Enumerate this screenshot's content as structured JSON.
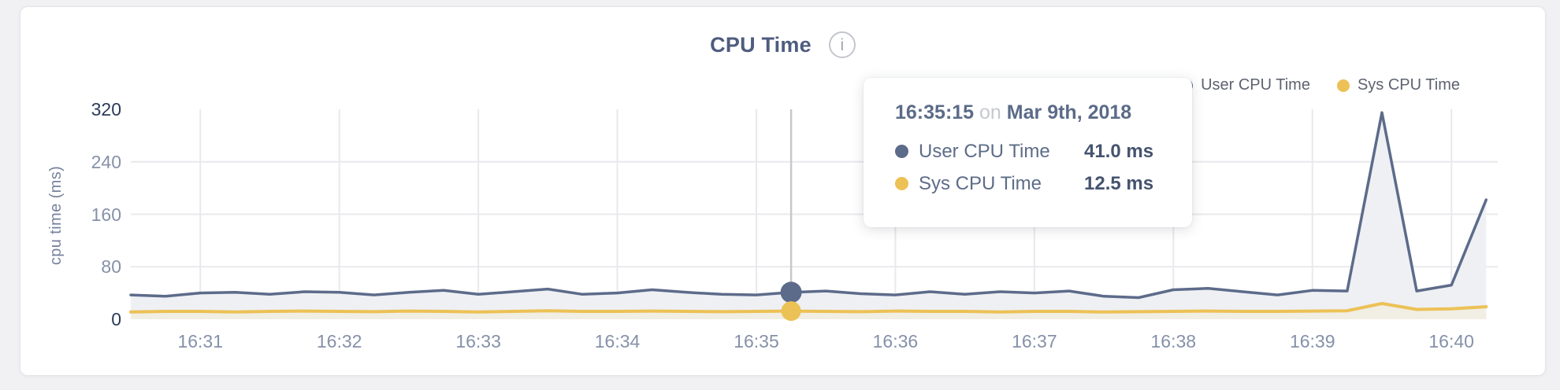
{
  "header": {
    "title": "CPU Time",
    "info_glyph": "i"
  },
  "legend": {
    "items": [
      {
        "label": "User CPU Time",
        "color": "#5d6b8a"
      },
      {
        "label": "Sys CPU Time",
        "color": "#ecc155"
      }
    ]
  },
  "axes": {
    "y_title": "cpu time (ms)"
  },
  "tooltip": {
    "time": "16:35:15",
    "conjunction": "on",
    "date": "Mar 9th, 2018",
    "rows": [
      {
        "label": "User CPU Time",
        "value": "41.0 ms",
        "color": "#5d6b8a"
      },
      {
        "label": "Sys CPU Time",
        "value": "12.5 ms",
        "color": "#ecc155"
      }
    ]
  },
  "chart_data": {
    "type": "area",
    "title": "CPU Time",
    "xlabel": "",
    "ylabel": "cpu time (ms)",
    "ylim": [
      0,
      320
    ],
    "y_ticks": [
      0,
      80,
      160,
      240,
      320
    ],
    "y_ticks_emphasized": [
      0,
      320
    ],
    "y_gridline_ticks": [
      80,
      160,
      240
    ],
    "x_tick_labels": [
      "16:31",
      "16:32",
      "16:33",
      "16:34",
      "16:35",
      "16:36",
      "16:37",
      "16:38",
      "16:39",
      "16:40"
    ],
    "x_tick_times": [
      "16:31:00",
      "16:32:00",
      "16:33:00",
      "16:34:00",
      "16:35:00",
      "16:36:00",
      "16:37:00",
      "16:38:00",
      "16:39:00",
      "16:40:00"
    ],
    "x_domain": [
      "16:30:30",
      "16:40:20"
    ],
    "grid": true,
    "legend_position": "top-right",
    "x": [
      "16:30:30",
      "16:30:45",
      "16:31:00",
      "16:31:15",
      "16:31:30",
      "16:31:45",
      "16:32:00",
      "16:32:15",
      "16:32:30",
      "16:32:45",
      "16:33:00",
      "16:33:15",
      "16:33:30",
      "16:33:45",
      "16:34:00",
      "16:34:15",
      "16:34:30",
      "16:34:45",
      "16:35:00",
      "16:35:15",
      "16:35:30",
      "16:35:45",
      "16:36:00",
      "16:36:15",
      "16:36:30",
      "16:36:45",
      "16:37:00",
      "16:37:15",
      "16:37:30",
      "16:37:45",
      "16:38:00",
      "16:38:15",
      "16:38:30",
      "16:38:45",
      "16:39:00",
      "16:39:15",
      "16:39:30",
      "16:39:45",
      "16:40:00",
      "16:40:15"
    ],
    "series": [
      {
        "name": "User CPU Time",
        "color": "#5d6b8a",
        "fill": "#eef0f4",
        "line_width": 3.5,
        "values": [
          37,
          35,
          40,
          41,
          38,
          42,
          41,
          37,
          41,
          44,
          38,
          42,
          46,
          38,
          40,
          45,
          41,
          38,
          37,
          41,
          43,
          39,
          37,
          42,
          38,
          42,
          40,
          43,
          35,
          33,
          45,
          47,
          42,
          37,
          44,
          43,
          315,
          43,
          52,
          182
        ]
      },
      {
        "name": "Sys CPU Time",
        "color": "#ecc155",
        "fill": "#f1eee4",
        "line_width": 4,
        "values": [
          11,
          12,
          12,
          11,
          12,
          12.5,
          12,
          11.5,
          12.5,
          12,
          11,
          12,
          13,
          12,
          12,
          12.5,
          12,
          11.5,
          12,
          12.5,
          12,
          11.5,
          12.5,
          12,
          12,
          11,
          12,
          12,
          11,
          11.5,
          12,
          12.5,
          12,
          12,
          12.5,
          13,
          24,
          15,
          16,
          19
        ]
      }
    ],
    "selected_point": {
      "time": "16:35:15",
      "index": 19,
      "values": [
        41.0,
        12.5
      ]
    }
  },
  "style": {
    "gridline_color": "#e9e9ed",
    "crosshair_color": "#c8c8cb",
    "tick_dark_color": "#2b3a59",
    "tick_light_color": "#8591a9"
  }
}
